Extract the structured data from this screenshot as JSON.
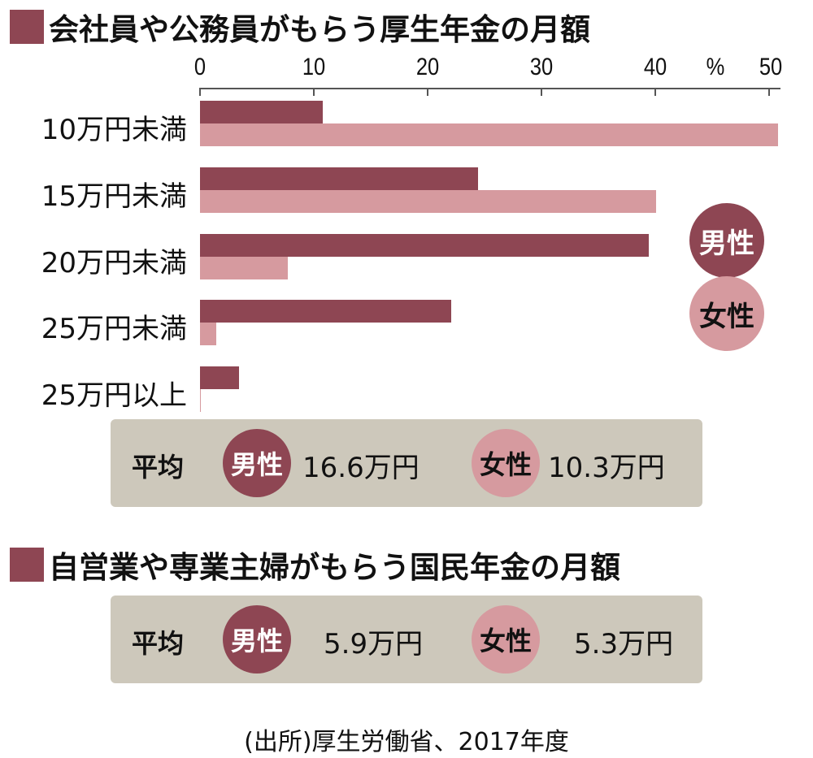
{
  "section1": {
    "title": "会社員や公務員がもらう厚生年金の月額",
    "axis_unit": "%",
    "ticks": [
      "0",
      "10",
      "20",
      "30",
      "40",
      "50"
    ],
    "legend": {
      "male": "男性",
      "female": "女性"
    },
    "categories": [
      "10万円未満",
      "15万円未満",
      "20万円未満",
      "25万円未満",
      "25万円以上"
    ],
    "average": {
      "label": "平均",
      "male_label": "男性",
      "male_value": "16.6万円",
      "female_label": "女性",
      "female_value": "10.3万円"
    }
  },
  "section2": {
    "title": "自営業や専業主婦がもらう国民年金の月額",
    "average": {
      "label": "平均",
      "male_label": "男性",
      "male_value": "5.9万円",
      "female_label": "女性",
      "female_value": "5.3万円"
    }
  },
  "source": "(出所)厚生労働省、2017年度",
  "colors": {
    "male": "#8e4653",
    "female": "#d69a9f",
    "box": "#cdc8bb"
  },
  "chart_data": {
    "type": "bar",
    "orientation": "horizontal",
    "title": "会社員や公務員がもらう厚生年金の月額",
    "xlabel": "%",
    "ylabel": "",
    "xlim": [
      0,
      50
    ],
    "xticks": [
      0,
      10,
      20,
      30,
      40,
      50
    ],
    "categories": [
      "10万円未満",
      "15万円未満",
      "20万円未満",
      "25万円未満",
      "25万円以上"
    ],
    "series": [
      {
        "name": "男性",
        "values": [
          10.8,
          24.4,
          39.4,
          22.1,
          3.4
        ]
      },
      {
        "name": "女性",
        "values": [
          50.8,
          40.1,
          7.7,
          1.4,
          0.1
        ]
      }
    ],
    "legend_position": "right",
    "grid": false,
    "annotations": [
      "平均 男性 16.6万円 女性 10.3万円",
      "自営業や専業主婦がもらう国民年金の月額: 平均 男性 5.9万円 女性 5.3万円",
      "(出所)厚生労働省、2017年度"
    ]
  }
}
